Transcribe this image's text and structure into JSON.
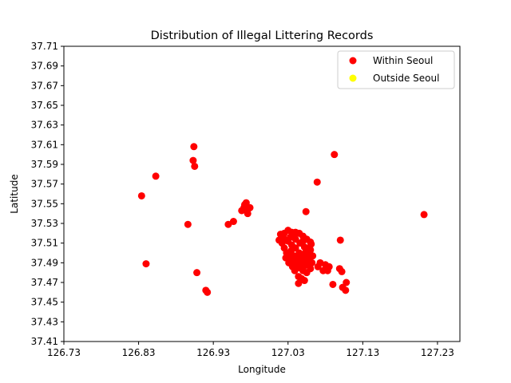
{
  "chart_data": {
    "type": "scatter",
    "title": "Distribution of Illegal Littering Records",
    "xlabel": "Longitude",
    "ylabel": "Latitude",
    "xlim": [
      126.73,
      127.26
    ],
    "ylim": [
      37.41,
      37.71
    ],
    "xticks": [
      "126.73",
      "126.83",
      "126.93",
      "127.03",
      "127.13",
      "127.23"
    ],
    "yticks": [
      "37.41",
      "37.43",
      "37.45",
      "37.47",
      "37.49",
      "37.51",
      "37.53",
      "37.55",
      "37.57",
      "37.59",
      "37.61",
      "37.63",
      "37.65",
      "37.67",
      "37.69",
      "37.71"
    ],
    "grid": false,
    "legend_position": "top-right",
    "series": [
      {
        "name": "Within Seoul",
        "color": "#ff0000",
        "points": [
          [
            126.834,
            37.558
          ],
          [
            126.84,
            37.489
          ],
          [
            126.853,
            37.578
          ],
          [
            126.896,
            37.529
          ],
          [
            126.904,
            37.608
          ],
          [
            126.903,
            37.594
          ],
          [
            126.905,
            37.588
          ],
          [
            126.908,
            37.48
          ],
          [
            126.92,
            37.462
          ],
          [
            126.922,
            37.46
          ],
          [
            126.95,
            37.529
          ],
          [
            126.957,
            37.532
          ],
          [
            126.968,
            37.543
          ],
          [
            126.972,
            37.549
          ],
          [
            126.974,
            37.551
          ],
          [
            126.977,
            37.545
          ],
          [
            126.976,
            37.54
          ],
          [
            126.971,
            37.546
          ],
          [
            126.979,
            37.546
          ],
          [
            127.054,
            37.542
          ],
          [
            127.069,
            37.572
          ],
          [
            127.092,
            37.6
          ],
          [
            127.1,
            37.513
          ],
          [
            127.212,
            37.539
          ],
          [
            127.09,
            37.468
          ],
          [
            127.103,
            37.465
          ],
          [
            127.107,
            37.462
          ],
          [
            127.108,
            37.47
          ],
          [
            127.099,
            37.484
          ],
          [
            127.102,
            37.481
          ],
          [
            127.044,
            37.469
          ],
          [
            127.08,
            37.488
          ],
          [
            127.085,
            37.486
          ],
          [
            127.077,
            37.482
          ],
          [
            127.073,
            37.49
          ],
          [
            127.083,
            37.482
          ],
          [
            127.07,
            37.486
          ],
          [
            127.02,
            37.519
          ],
          [
            127.018,
            37.513
          ],
          [
            127.025,
            37.52
          ],
          [
            127.03,
            37.523
          ],
          [
            127.035,
            37.521
          ],
          [
            127.04,
            37.521
          ],
          [
            127.045,
            37.52
          ],
          [
            127.05,
            37.517
          ],
          [
            127.055,
            37.514
          ],
          [
            127.06,
            37.511
          ],
          [
            127.022,
            37.51
          ],
          [
            127.025,
            37.505
          ],
          [
            127.028,
            37.5
          ],
          [
            127.032,
            37.496
          ],
          [
            127.036,
            37.492
          ],
          [
            127.04,
            37.488
          ],
          [
            127.045,
            37.485
          ],
          [
            127.05,
            37.482
          ],
          [
            127.055,
            37.48
          ],
          [
            127.06,
            37.484
          ],
          [
            127.062,
            37.49
          ],
          [
            127.063,
            37.497
          ],
          [
            127.06,
            37.503
          ],
          [
            127.03,
            37.512
          ],
          [
            127.035,
            37.508
          ],
          [
            127.04,
            37.505
          ],
          [
            127.045,
            37.5
          ],
          [
            127.05,
            37.497
          ],
          [
            127.055,
            37.494
          ],
          [
            127.04,
            37.514
          ],
          [
            127.046,
            37.51
          ],
          [
            127.052,
            37.506
          ],
          [
            127.034,
            37.502
          ],
          [
            127.038,
            37.497
          ],
          [
            127.042,
            37.494
          ],
          [
            127.048,
            37.49
          ],
          [
            127.052,
            37.487
          ],
          [
            127.056,
            37.489
          ],
          [
            127.058,
            37.497
          ],
          [
            127.044,
            37.476
          ],
          [
            127.048,
            37.474
          ],
          [
            127.052,
            37.472
          ],
          [
            127.036,
            37.486
          ],
          [
            127.031,
            37.49
          ],
          [
            127.027,
            37.495
          ],
          [
            127.024,
            37.515
          ],
          [
            127.057,
            37.505
          ],
          [
            127.061,
            37.509
          ],
          [
            127.05,
            37.512
          ],
          [
            127.038,
            37.518
          ],
          [
            127.033,
            37.516
          ],
          [
            127.047,
            37.495
          ],
          [
            127.043,
            37.489
          ],
          [
            127.039,
            37.482
          ],
          [
            127.053,
            37.5
          ],
          [
            127.058,
            37.492
          ]
        ]
      },
      {
        "name": "Outside Seoul",
        "color": "#ffff00",
        "points": []
      }
    ]
  }
}
